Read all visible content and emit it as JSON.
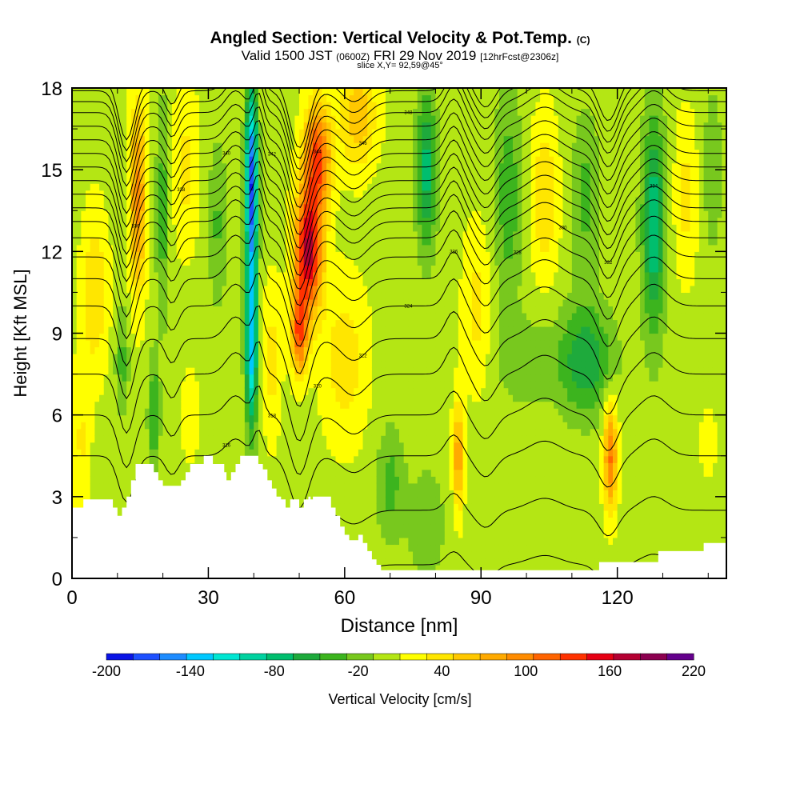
{
  "chart_data": {
    "type": "heatmap",
    "title": "Angled Section: Vertical Velocity & Pot.Temp.",
    "title_mark": "(C)",
    "subtitle_valid": "Valid 1500 JST",
    "subtitle_utc": "(0600Z)",
    "subtitle_date": "FRI 29 Nov 2019",
    "subtitle_fcst": "[12hrFcst@2306z]",
    "slice_label": "slice X,Y= 92,59@45°",
    "xlabel": "Distance [nm]",
    "ylabel": "Height [Kft MSL]",
    "xlim": [
      0,
      144
    ],
    "ylim": [
      0,
      18
    ],
    "x_ticks": [
      "0",
      "30",
      "60",
      "90",
      "120"
    ],
    "y_ticks": [
      "0",
      "3",
      "6",
      "9",
      "12",
      "15",
      "18"
    ],
    "colorbar_label": "Vertical Velocity [cm/s]",
    "colorbar_ticks": [
      "-200",
      "-140",
      "-80",
      "-20",
      "40",
      "100",
      "160",
      "220"
    ],
    "colorbar_levels": [
      -200,
      -180,
      -160,
      -140,
      -120,
      -100,
      -80,
      -60,
      -40,
      -20,
      0,
      20,
      40,
      60,
      80,
      100,
      120,
      140,
      160,
      180,
      200,
      220
    ],
    "colorbar_colors": [
      "#0a14e6",
      "#1e50ff",
      "#1e8cff",
      "#00c8ff",
      "#00e6d2",
      "#00d2a0",
      "#00be6e",
      "#1eaa3c",
      "#3cb41e",
      "#78c81e",
      "#b4e614",
      "#ffff00",
      "#ffe600",
      "#ffc800",
      "#ffaa00",
      "#ff8c00",
      "#ff6400",
      "#ff3200",
      "#e60014",
      "#b40032",
      "#8c0050",
      "#64008c"
    ],
    "velocity_features": [
      {
        "x": 39.5,
        "z": 14.5,
        "w": -190,
        "sx": 1.3,
        "sz": 3.5
      },
      {
        "x": 39.5,
        "z": 8.5,
        "w": -140,
        "sx": 1.3,
        "sz": 3
      },
      {
        "x": 52,
        "z": 12,
        "w": 175,
        "sx": 3,
        "sz": 2.3
      },
      {
        "x": 54,
        "z": 15.5,
        "w": 130,
        "sx": 3,
        "sz": 2
      },
      {
        "x": 50,
        "z": 9,
        "w": 120,
        "sx": 1.8,
        "sz": 1.5
      },
      {
        "x": 14.5,
        "z": 14,
        "w": 95,
        "sx": 1.8,
        "sz": 3.5
      },
      {
        "x": 20,
        "z": 13.5,
        "w": -45,
        "sx": 1.5,
        "sz": 4
      },
      {
        "x": 25,
        "z": 15,
        "w": 35,
        "sx": 3,
        "sz": 3
      },
      {
        "x": 32,
        "z": 13,
        "w": -35,
        "sx": 2,
        "sz": 3
      },
      {
        "x": 63,
        "z": 17,
        "w": 65,
        "sx": 4,
        "sz": 2
      },
      {
        "x": 78,
        "z": 15,
        "w": -80,
        "sx": 2.2,
        "sz": 3
      },
      {
        "x": 96,
        "z": 14,
        "w": -45,
        "sx": 3,
        "sz": 4
      },
      {
        "x": 104,
        "z": 14,
        "w": 45,
        "sx": 3,
        "sz": 3
      },
      {
        "x": 113,
        "z": 14,
        "w": -40,
        "sx": 3,
        "sz": 3
      },
      {
        "x": 128,
        "z": 13,
        "w": -90,
        "sx": 2.5,
        "sz": 4
      },
      {
        "x": 135,
        "z": 14,
        "w": 35,
        "sx": 2.5,
        "sz": 3
      },
      {
        "x": 141,
        "z": 15,
        "w": -30,
        "sx": 2,
        "sz": 3
      },
      {
        "x": 118.5,
        "z": 4.5,
        "w": 110,
        "sx": 1.5,
        "sz": 2
      },
      {
        "x": 85,
        "z": 4.5,
        "w": 85,
        "sx": 1.2,
        "sz": 2
      },
      {
        "x": 113,
        "z": 8,
        "w": -70,
        "sx": 6,
        "sz": 2
      },
      {
        "x": 100,
        "z": 8,
        "w": -30,
        "sx": 6,
        "sz": 1.5
      },
      {
        "x": 70,
        "z": 3.5,
        "w": -40,
        "sx": 3,
        "sz": 2
      },
      {
        "x": 78,
        "z": 2,
        "w": -30,
        "sx": 4,
        "sz": 2
      },
      {
        "x": 5,
        "z": 10.5,
        "w": 45,
        "sx": 3,
        "sz": 3
      },
      {
        "x": 2,
        "z": 5,
        "w": 30,
        "sx": 2,
        "sz": 3
      },
      {
        "x": 11,
        "z": 8,
        "w": -40,
        "sx": 1.5,
        "sz": 2
      },
      {
        "x": 18,
        "z": 6,
        "w": -60,
        "sx": 1.2,
        "sz": 2
      },
      {
        "x": 26,
        "z": 6,
        "w": 20,
        "sx": 2,
        "sz": 2
      },
      {
        "x": 44,
        "z": 8,
        "w": 35,
        "sx": 2,
        "sz": 3
      },
      {
        "x": 60,
        "z": 8,
        "w": 40,
        "sx": 5,
        "sz": 3
      },
      {
        "x": 89,
        "z": 10,
        "w": 35,
        "sx": 3,
        "sz": 3
      },
      {
        "x": 140,
        "z": 5,
        "w": 10,
        "sx": 4,
        "sz": 3
      }
    ],
    "theta_contours": {
      "levels": [
        312,
        314,
        316,
        318,
        320,
        322,
        324,
        326,
        328,
        330,
        332,
        334,
        336,
        338,
        340,
        342,
        344,
        346,
        348,
        350,
        352,
        354
      ],
      "heights": [
        0.5,
        2.5,
        4.5,
        6.0,
        7.5,
        8.8,
        10.0,
        11.0,
        11.8,
        12.5,
        13.1,
        13.6,
        14.1,
        14.6,
        15.1,
        15.6,
        16.1,
        16.6,
        17.1,
        17.5,
        17.9,
        18.3
      ],
      "perturbations": [
        {
          "x": 12,
          "dz": -2.2,
          "w": 2.5
        },
        {
          "x": 22,
          "dz": -0.9,
          "w": 2.0
        },
        {
          "x": 36,
          "dz": 0.8,
          "w": 3.0
        },
        {
          "x": 41,
          "dz": 1.2,
          "w": 1.5
        },
        {
          "x": 50,
          "dz": -2.5,
          "w": 3.0
        },
        {
          "x": 62,
          "dz": -0.8,
          "w": 4.0
        },
        {
          "x": 84,
          "dz": 1.0,
          "w": 2.5
        },
        {
          "x": 91,
          "dz": -1.0,
          "w": 3.0
        },
        {
          "x": 104,
          "dz": 0.7,
          "w": 5.0
        },
        {
          "x": 118,
          "dz": -1.5,
          "w": 3.0
        },
        {
          "x": 128,
          "dz": 0.8,
          "w": 4.0
        }
      ]
    },
    "terrain": [
      [
        0,
        2.6
      ],
      [
        2.5,
        2.9
      ],
      [
        8,
        2.9
      ],
      [
        9,
        2.6
      ],
      [
        10,
        2.3
      ],
      [
        11,
        2.6
      ],
      [
        12,
        3.0
      ],
      [
        13,
        3.6
      ],
      [
        14,
        4.2
      ],
      [
        17,
        4.2
      ],
      [
        18,
        3.9
      ],
      [
        19,
        3.6
      ],
      [
        20,
        3.4
      ],
      [
        23.5,
        3.4
      ],
      [
        24,
        3.6
      ],
      [
        25,
        3.9
      ],
      [
        26,
        4.2
      ],
      [
        28,
        4.2
      ],
      [
        29,
        4.5
      ],
      [
        30.5,
        4.5
      ],
      [
        31,
        4.2
      ],
      [
        33,
        4.2
      ],
      [
        33.5,
        3.9
      ],
      [
        34,
        3.6
      ],
      [
        35,
        3.9
      ],
      [
        36,
        4.2
      ],
      [
        37,
        4.5
      ],
      [
        40,
        4.5
      ],
      [
        41,
        4.2
      ],
      [
        42,
        4.0
      ],
      [
        43,
        3.6
      ],
      [
        44,
        3.3
      ],
      [
        45,
        3.0
      ],
      [
        46,
        2.9
      ],
      [
        47,
        2.6
      ],
      [
        48,
        2.9
      ],
      [
        49.5,
        2.9
      ],
      [
        50,
        2.6
      ],
      [
        51,
        2.9
      ],
      [
        52,
        3.0
      ],
      [
        52.5,
        2.9
      ],
      [
        53,
        3.0
      ],
      [
        56,
        3.0
      ],
      [
        57,
        2.6
      ],
      [
        58,
        2.3
      ],
      [
        59,
        1.9
      ],
      [
        60,
        1.6
      ],
      [
        61,
        1.4
      ],
      [
        63,
        1.6
      ],
      [
        64,
        1.3
      ],
      [
        65,
        1.0
      ],
      [
        66,
        0.7
      ],
      [
        67,
        0.5
      ],
      [
        68,
        0.3
      ],
      [
        115,
        0.3
      ],
      [
        116,
        0.6
      ],
      [
        128,
        0.6
      ],
      [
        129,
        1.0
      ],
      [
        138,
        1.0
      ],
      [
        139,
        1.3
      ],
      [
        144,
        1.3
      ]
    ]
  }
}
